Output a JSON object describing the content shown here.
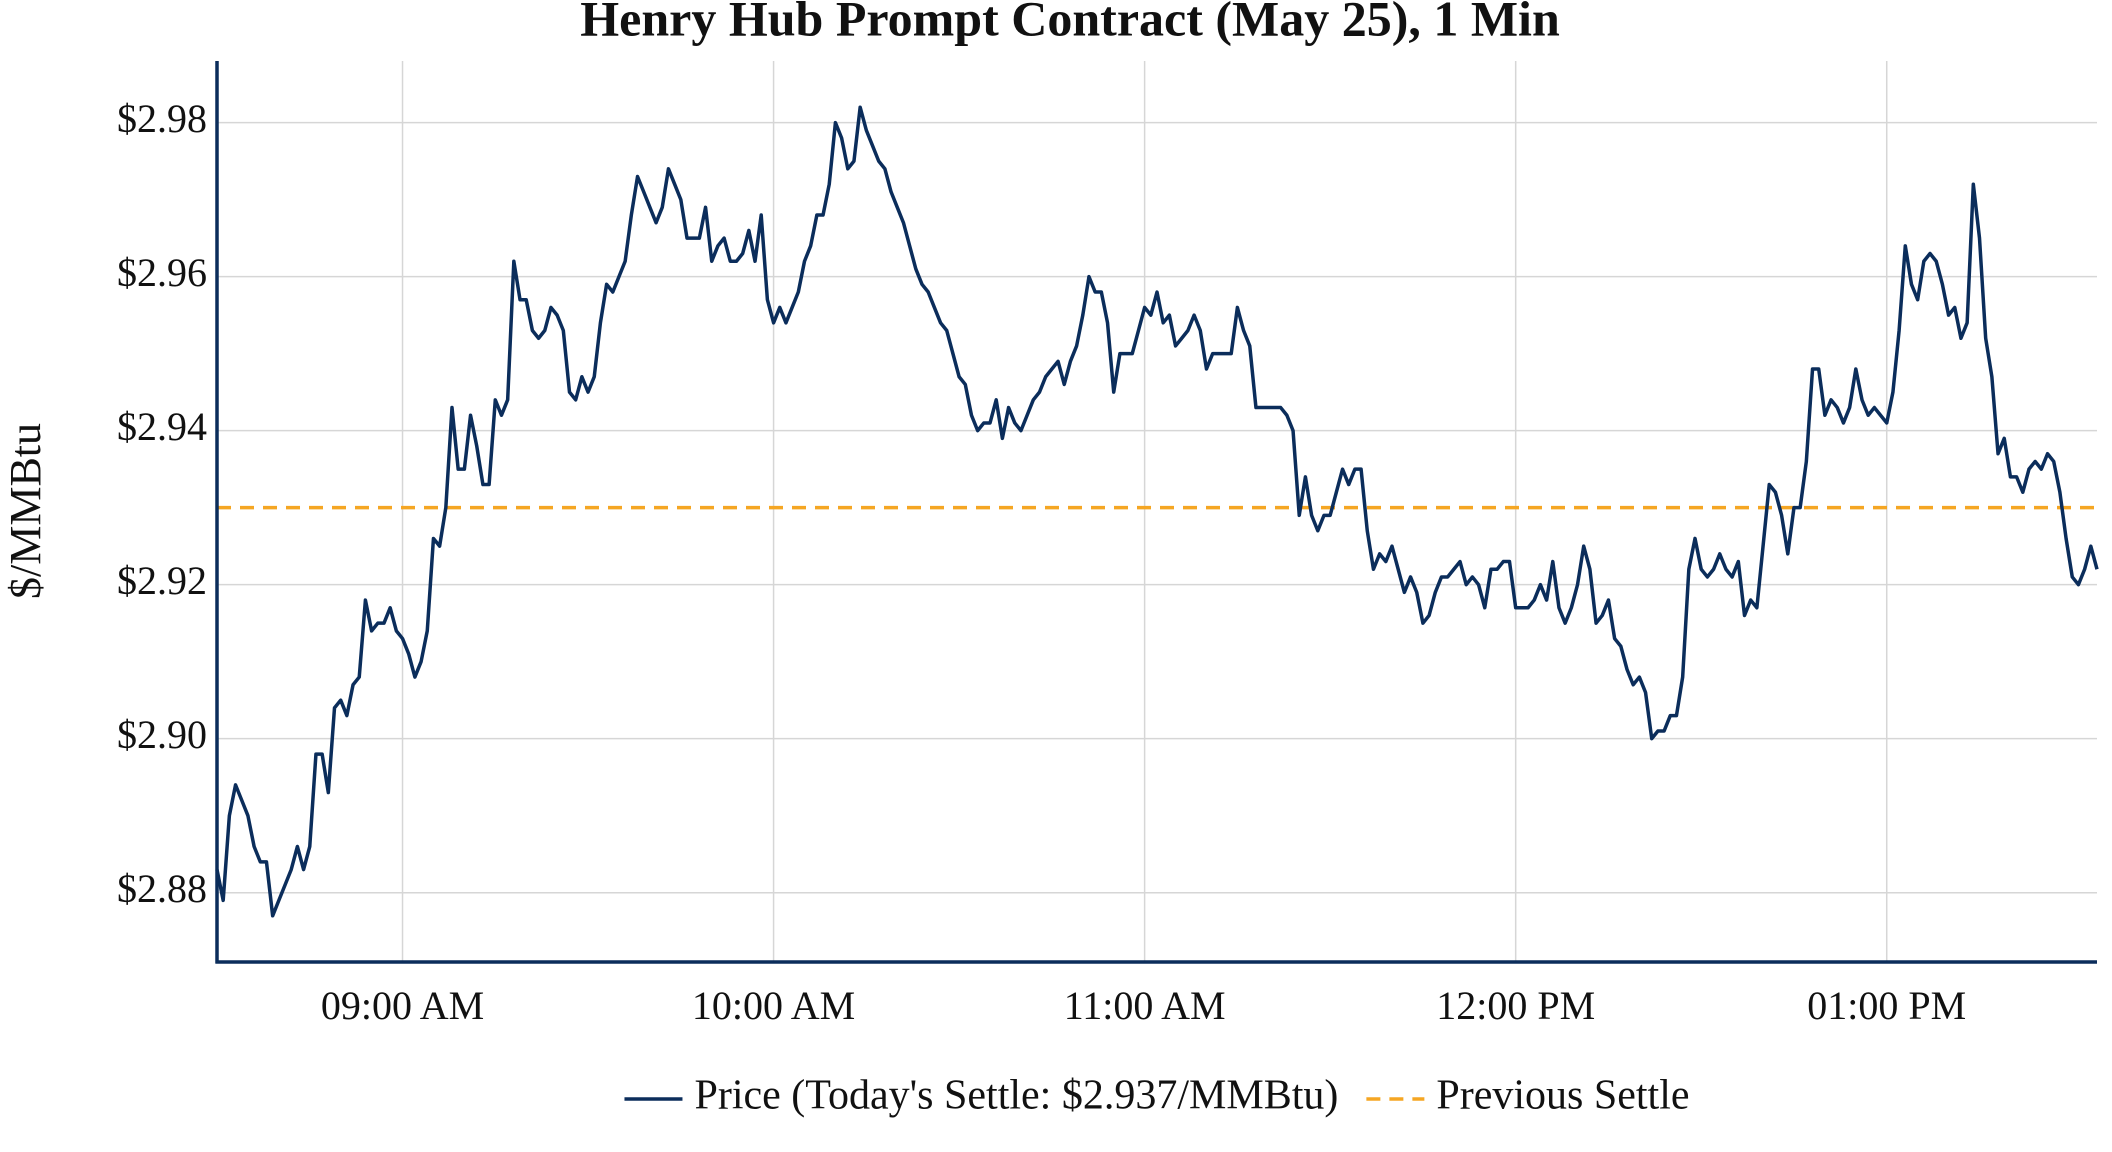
{
  "chart_data": {
    "type": "line",
    "title": "Henry Hub Prompt Contract (May 25), 1 Min",
    "y_label": "$/MMBtu",
    "x": [
      "08:30 AM",
      "08:31 AM",
      "08:32 AM",
      "08:33 AM",
      "08:34 AM",
      "08:35 AM",
      "08:36 AM",
      "08:37 AM",
      "08:38 AM",
      "08:39 AM",
      "08:40 AM",
      "08:41 AM",
      "08:42 AM",
      "08:43 AM",
      "08:44 AM",
      "08:45 AM",
      "08:46 AM",
      "08:47 AM",
      "08:48 AM",
      "08:49 AM",
      "08:50 AM",
      "08:51 AM",
      "08:52 AM",
      "08:53 AM",
      "08:54 AM",
      "08:55 AM",
      "08:56 AM",
      "08:57 AM",
      "08:58 AM",
      "08:59 AM",
      "09:00 AM",
      "09:01 AM",
      "09:02 AM",
      "09:03 AM",
      "09:04 AM",
      "09:05 AM",
      "09:06 AM",
      "09:07 AM",
      "09:08 AM",
      "09:09 AM",
      "09:10 AM",
      "09:11 AM",
      "09:12 AM",
      "09:13 AM",
      "09:14 AM",
      "09:15 AM",
      "09:16 AM",
      "09:17 AM",
      "09:18 AM",
      "09:19 AM",
      "09:20 AM",
      "09:21 AM",
      "09:22 AM",
      "09:23 AM",
      "09:24 AM",
      "09:25 AM",
      "09:26 AM",
      "09:27 AM",
      "09:28 AM",
      "09:29 AM",
      "09:30 AM",
      "09:31 AM",
      "09:32 AM",
      "09:33 AM",
      "09:34 AM",
      "09:35 AM",
      "09:36 AM",
      "09:37 AM",
      "09:38 AM",
      "09:39 AM",
      "09:40 AM",
      "09:41 AM",
      "09:42 AM",
      "09:43 AM",
      "09:44 AM",
      "09:45 AM",
      "09:46 AM",
      "09:47 AM",
      "09:48 AM",
      "09:49 AM",
      "09:50 AM",
      "09:51 AM",
      "09:52 AM",
      "09:53 AM",
      "09:54 AM",
      "09:55 AM",
      "09:56 AM",
      "09:57 AM",
      "09:58 AM",
      "09:59 AM",
      "10:00 AM",
      "10:01 AM",
      "10:02 AM",
      "10:03 AM",
      "10:04 AM",
      "10:05 AM",
      "10:06 AM",
      "10:07 AM",
      "10:08 AM",
      "10:09 AM",
      "10:10 AM",
      "10:11 AM",
      "10:12 AM",
      "10:13 AM",
      "10:14 AM",
      "10:15 AM",
      "10:16 AM",
      "10:17 AM",
      "10:18 AM",
      "10:19 AM",
      "10:20 AM",
      "10:21 AM",
      "10:22 AM",
      "10:23 AM",
      "10:24 AM",
      "10:25 AM",
      "10:26 AM",
      "10:27 AM",
      "10:28 AM",
      "10:29 AM",
      "10:30 AM",
      "10:31 AM",
      "10:32 AM",
      "10:33 AM",
      "10:34 AM",
      "10:35 AM",
      "10:36 AM",
      "10:37 AM",
      "10:38 AM",
      "10:39 AM",
      "10:40 AM",
      "10:41 AM",
      "10:42 AM",
      "10:43 AM",
      "10:44 AM",
      "10:45 AM",
      "10:46 AM",
      "10:47 AM",
      "10:48 AM",
      "10:49 AM",
      "10:50 AM",
      "10:51 AM",
      "10:52 AM",
      "10:53 AM",
      "10:54 AM",
      "10:55 AM",
      "10:56 AM",
      "10:57 AM",
      "10:58 AM",
      "10:59 AM",
      "11:00 AM",
      "11:01 AM",
      "11:02 AM",
      "11:03 AM",
      "11:04 AM",
      "11:05 AM",
      "11:06 AM",
      "11:07 AM",
      "11:08 AM",
      "11:09 AM",
      "11:10 AM",
      "11:11 AM",
      "11:12 AM",
      "11:13 AM",
      "11:14 AM",
      "11:15 AM",
      "11:16 AM",
      "11:17 AM",
      "11:18 AM",
      "11:19 AM",
      "11:20 AM",
      "11:21 AM",
      "11:22 AM",
      "11:23 AM",
      "11:24 AM",
      "11:25 AM",
      "11:26 AM",
      "11:27 AM",
      "11:28 AM",
      "11:29 AM",
      "11:30 AM",
      "11:31 AM",
      "11:32 AM",
      "11:33 AM",
      "11:34 AM",
      "11:35 AM",
      "11:36 AM",
      "11:37 AM",
      "11:38 AM",
      "11:39 AM",
      "11:40 AM",
      "11:41 AM",
      "11:42 AM",
      "11:43 AM",
      "11:44 AM",
      "11:45 AM",
      "11:46 AM",
      "11:47 AM",
      "11:48 AM",
      "11:49 AM",
      "11:50 AM",
      "11:51 AM",
      "11:52 AM",
      "11:53 AM",
      "11:54 AM",
      "11:55 AM",
      "11:56 AM",
      "11:57 AM",
      "11:58 AM",
      "11:59 AM",
      "12:00 PM",
      "12:01 PM",
      "12:02 PM",
      "12:03 PM",
      "12:04 PM",
      "12:05 PM",
      "12:06 PM",
      "12:07 PM",
      "12:08 PM",
      "12:09 PM",
      "12:10 PM",
      "12:11 PM",
      "12:12 PM",
      "12:13 PM",
      "12:14 PM",
      "12:15 PM",
      "12:16 PM",
      "12:17 PM",
      "12:18 PM",
      "12:19 PM",
      "12:20 PM",
      "12:21 PM",
      "12:22 PM",
      "12:23 PM",
      "12:24 PM",
      "12:25 PM",
      "12:26 PM",
      "12:27 PM",
      "12:28 PM",
      "12:29 PM",
      "12:30 PM",
      "12:31 PM",
      "12:32 PM",
      "12:33 PM",
      "12:34 PM",
      "12:35 PM",
      "12:36 PM",
      "12:37 PM",
      "12:38 PM",
      "12:39 PM",
      "12:40 PM",
      "12:41 PM",
      "12:42 PM",
      "12:43 PM",
      "12:44 PM",
      "12:45 PM",
      "12:46 PM",
      "12:47 PM",
      "12:48 PM",
      "12:49 PM",
      "12:50 PM",
      "12:51 PM",
      "12:52 PM",
      "12:53 PM",
      "12:54 PM",
      "12:55 PM",
      "12:56 PM",
      "12:57 PM",
      "12:58 PM",
      "12:59 PM",
      "01:00 PM",
      "01:01 PM",
      "01:02 PM",
      "01:03 PM",
      "01:04 PM",
      "01:05 PM",
      "01:06 PM",
      "01:07 PM",
      "01:08 PM",
      "01:09 PM",
      "01:10 PM",
      "01:11 PM",
      "01:12 PM",
      "01:13 PM",
      "01:14 PM",
      "01:15 PM",
      "01:16 PM",
      "01:17 PM",
      "01:18 PM",
      "01:19 PM",
      "01:20 PM",
      "01:21 PM",
      "01:22 PM",
      "01:23 PM",
      "01:24 PM",
      "01:25 PM",
      "01:26 PM",
      "01:27 PM",
      "01:28 PM",
      "01:29 PM",
      "01:30 PM",
      "01:31 PM",
      "01:32 PM",
      "01:33 PM",
      "01:34 PM"
    ],
    "series": [
      {
        "name": "Price (Today's Settle: $2.937/MMBtu)",
        "color": "#0b2d5b",
        "values": [
          2.883,
          2.879,
          2.89,
          2.894,
          2.892,
          2.89,
          2.886,
          2.884,
          2.884,
          2.877,
          2.879,
          2.881,
          2.883,
          2.886,
          2.883,
          2.886,
          2.898,
          2.898,
          2.893,
          2.904,
          2.905,
          2.903,
          2.907,
          2.908,
          2.918,
          2.914,
          2.915,
          2.915,
          2.917,
          2.914,
          2.913,
          2.911,
          2.908,
          2.91,
          2.914,
          2.926,
          2.925,
          2.93,
          2.943,
          2.935,
          2.935,
          2.942,
          2.938,
          2.933,
          2.933,
          2.944,
          2.942,
          2.944,
          2.962,
          2.957,
          2.957,
          2.953,
          2.952,
          2.953,
          2.956,
          2.955,
          2.953,
          2.945,
          2.944,
          2.947,
          2.945,
          2.947,
          2.954,
          2.959,
          2.958,
          2.96,
          2.962,
          2.968,
          2.973,
          2.971,
          2.969,
          2.967,
          2.969,
          2.974,
          2.972,
          2.97,
          2.965,
          2.965,
          2.965,
          2.969,
          2.962,
          2.964,
          2.965,
          2.962,
          2.962,
          2.963,
          2.966,
          2.962,
          2.968,
          2.957,
          2.954,
          2.956,
          2.954,
          2.956,
          2.958,
          2.962,
          2.964,
          2.968,
          2.968,
          2.972,
          2.98,
          2.978,
          2.974,
          2.975,
          2.982,
          2.979,
          2.977,
          2.975,
          2.974,
          2.971,
          2.969,
          2.967,
          2.964,
          2.961,
          2.959,
          2.958,
          2.956,
          2.954,
          2.953,
          2.95,
          2.947,
          2.946,
          2.942,
          2.94,
          2.941,
          2.941,
          2.944,
          2.939,
          2.943,
          2.941,
          2.94,
          2.942,
          2.944,
          2.945,
          2.947,
          2.948,
          2.949,
          2.946,
          2.949,
          2.951,
          2.955,
          2.96,
          2.958,
          2.958,
          2.954,
          2.945,
          2.95,
          2.95,
          2.95,
          2.953,
          2.956,
          2.955,
          2.958,
          2.954,
          2.955,
          2.951,
          2.952,
          2.953,
          2.955,
          2.953,
          2.948,
          2.95,
          2.95,
          2.95,
          2.95,
          2.956,
          2.953,
          2.951,
          2.943,
          2.943,
          2.943,
          2.943,
          2.943,
          2.942,
          2.94,
          2.929,
          2.934,
          2.929,
          2.927,
          2.929,
          2.929,
          2.932,
          2.935,
          2.933,
          2.935,
          2.935,
          2.927,
          2.922,
          2.924,
          2.923,
          2.925,
          2.922,
          2.919,
          2.921,
          2.919,
          2.915,
          2.916,
          2.919,
          2.921,
          2.921,
          2.922,
          2.923,
          2.92,
          2.921,
          2.92,
          2.917,
          2.922,
          2.922,
          2.923,
          2.923,
          2.917,
          2.917,
          2.917,
          2.918,
          2.92,
          2.918,
          2.923,
          2.917,
          2.915,
          2.917,
          2.92,
          2.925,
          2.922,
          2.915,
          2.916,
          2.918,
          2.913,
          2.912,
          2.909,
          2.907,
          2.908,
          2.906,
          2.9,
          2.901,
          2.901,
          2.903,
          2.903,
          2.908,
          2.922,
          2.926,
          2.922,
          2.921,
          2.922,
          2.924,
          2.922,
          2.921,
          2.923,
          2.916,
          2.918,
          2.917,
          2.925,
          2.933,
          2.932,
          2.929,
          2.924,
          2.93,
          2.93,
          2.936,
          2.948,
          2.948,
          2.942,
          2.944,
          2.943,
          2.941,
          2.943,
          2.948,
          2.944,
          2.942,
          2.943,
          2.942,
          2.941,
          2.945,
          2.953,
          2.964,
          2.959,
          2.957,
          2.962,
          2.963,
          2.962,
          2.959,
          2.955,
          2.956,
          2.952,
          2.954,
          2.972,
          2.965,
          2.952,
          2.947,
          2.937,
          2.939,
          2.934,
          2.934,
          2.932,
          2.935,
          2.936,
          2.935,
          2.937,
          2.936,
          2.932,
          2.926,
          2.921,
          2.92,
          2.922,
          2.925,
          2.922
        ]
      }
    ],
    "reference_line": {
      "name": "Previous Settle",
      "value": 2.93,
      "color": "#f5a623",
      "dashed": true
    },
    "xlim": [
      "08:30 AM",
      "01:34 PM"
    ],
    "ylim": [
      2.871,
      2.988
    ],
    "xticks": [
      "09:00 AM",
      "10:00 AM",
      "11:00 AM",
      "12:00 PM",
      "01:00 PM"
    ],
    "yticks": [
      {
        "value": 2.88,
        "label": "$2.88"
      },
      {
        "value": 2.9,
        "label": "$2.90"
      },
      {
        "value": 2.92,
        "label": "$2.92"
      },
      {
        "value": 2.94,
        "label": "$2.94"
      },
      {
        "value": 2.96,
        "label": "$2.96"
      },
      {
        "value": 2.98,
        "label": "$2.98"
      }
    ],
    "grid": true,
    "legend": "bottom"
  }
}
